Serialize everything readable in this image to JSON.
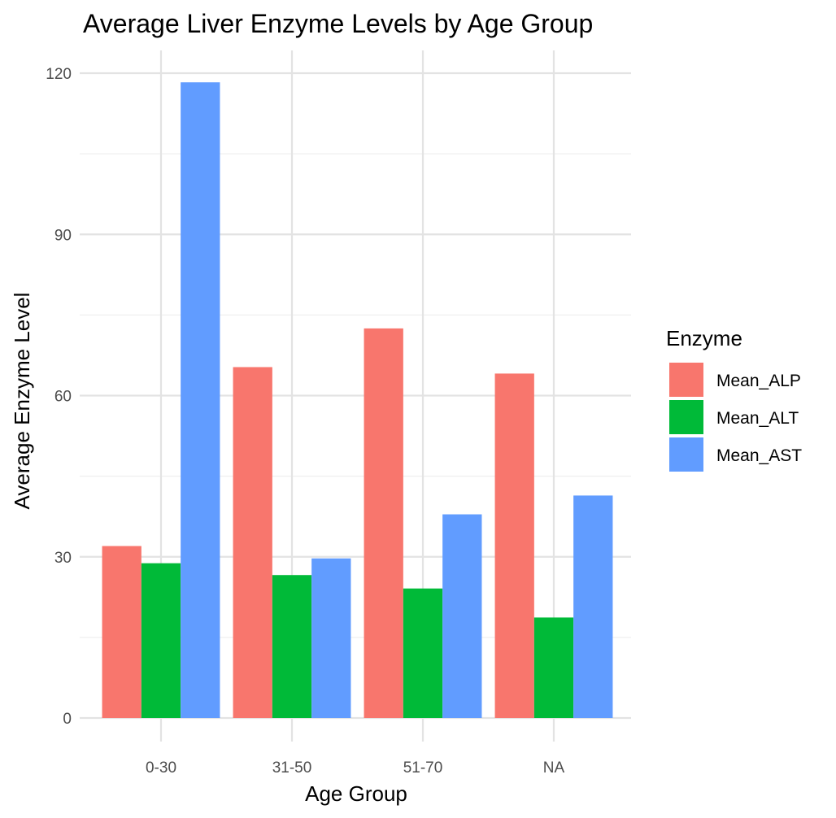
{
  "chart_data": {
    "type": "bar",
    "title": "Average Liver Enzyme Levels by Age Group",
    "xlabel": "Age Group",
    "ylabel": "Average Enzyme Level",
    "categories": [
      "0-30",
      "31-50",
      "51-70",
      "NA"
    ],
    "series": [
      {
        "name": "Mean_ALP",
        "color": "#F8766D",
        "values": [
          32.0,
          65.3,
          72.5,
          64.1
        ]
      },
      {
        "name": "Mean_ALT",
        "color": "#00BA38",
        "values": [
          28.8,
          26.6,
          24.1,
          18.7
        ]
      },
      {
        "name": "Mean_AST",
        "color": "#619CFF",
        "values": [
          118.3,
          29.7,
          37.9,
          41.4
        ]
      }
    ],
    "ylim": [
      0,
      120
    ],
    "yticks": [
      0,
      30,
      60,
      90,
      120
    ],
    "grid": true,
    "legend": {
      "title": "Enzyme",
      "position": "right"
    }
  }
}
